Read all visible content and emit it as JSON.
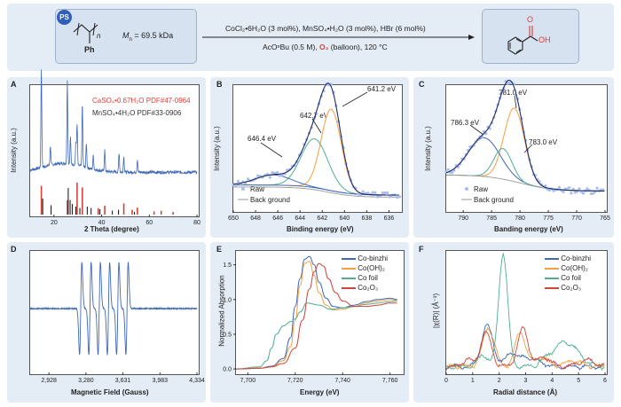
{
  "scheme": {
    "ps_badge": "PS",
    "mn_label": "M",
    "mn_sub": "n",
    "mn_value": "= 69.5 kDa",
    "repeat_n": "n",
    "ph_label": "Ph",
    "conditions_top": "CoCl₂•6H₂O (3 mol%), MnSO₄•H₂O (3 mol%), HBr (6 mol%)",
    "conditions_bottom_a": "AcOⁿBu (0.5 M), ",
    "conditions_o2": "O₂",
    "conditions_bottom_b": " (balloon), 120 °C",
    "product_o": "O",
    "product_oh": "OH"
  },
  "colors": {
    "panel_bg": "#e4ecf6",
    "blue": "#3f68b8",
    "orange": "#f5a040",
    "green": "#4fae91",
    "red": "#d0453a",
    "raw": "#a9bfea",
    "gray": "#9a9a9a"
  },
  "panels": {
    "A": {
      "letter": "A",
      "legend_red": "CaSO₄•0.67H₂O PDF#47-0964",
      "legend_black": "MnSO₄•4H₂O PDF#33-0906"
    },
    "B": {
      "letter": "B",
      "legend_raw": "Raw",
      "legend_bg": "Back ground"
    },
    "C": {
      "letter": "C",
      "legend_raw": "Raw",
      "legend_bg": "Back ground"
    },
    "D": {
      "letter": "D"
    },
    "E": {
      "letter": "E"
    },
    "F": {
      "letter": "F"
    }
  },
  "chart_data": [
    {
      "id": "A",
      "type": "line",
      "xlabel": "2 Theta (degree)",
      "ylabel": "Intensity (a.u.)",
      "xlim": [
        10,
        80
      ],
      "xticks": [
        20,
        40,
        60,
        80
      ],
      "pattern_peaks": [
        [
          14.7,
          110
        ],
        [
          25.6,
          95
        ],
        [
          29.7,
          45
        ],
        [
          31.9,
          70
        ],
        [
          29.2,
          25
        ],
        [
          18.5,
          22
        ],
        [
          26.9,
          30
        ],
        [
          33.6,
          28
        ],
        [
          41.3,
          24
        ],
        [
          47.3,
          22
        ],
        [
          49.3,
          18
        ],
        [
          55.0,
          14
        ],
        [
          36.5,
          16
        ]
      ],
      "ref_red": [
        [
          14.7,
          0.9
        ],
        [
          25.6,
          0.45
        ],
        [
          29.7,
          1.0
        ],
        [
          31.9,
          0.85
        ],
        [
          38.6,
          0.2
        ],
        [
          41.3,
          0.28
        ],
        [
          49.3,
          0.35
        ],
        [
          52.8,
          0.15
        ],
        [
          55.0,
          0.22
        ],
        [
          62.0,
          0.1
        ],
        [
          65.0,
          0.12
        ],
        [
          70.0,
          0.08
        ]
      ],
      "ref_black": [
        [
          14.9,
          0.6
        ],
        [
          18.4,
          0.35
        ],
        [
          25.6,
          1.0
        ],
        [
          26.4,
          0.55
        ],
        [
          27.3,
          0.4
        ],
        [
          28.8,
          0.3
        ],
        [
          30.5,
          0.25
        ],
        [
          33.6,
          0.3
        ],
        [
          35.2,
          0.25
        ],
        [
          38.9,
          0.2
        ],
        [
          44.1,
          0.15
        ],
        [
          46.7,
          0.18
        ],
        [
          53.4,
          0.1
        ]
      ]
    },
    {
      "id": "B",
      "type": "line",
      "xlabel": "Binding energy (eV)",
      "ylabel": "Intensity (a.u.)",
      "xlim": [
        650,
        635
      ],
      "xticks": [
        650,
        648,
        646,
        644,
        642,
        640,
        638,
        636
      ],
      "peaks": [
        {
          "label": "641.2 eV",
          "center": 641.2,
          "height": 0.8,
          "width": 0.9
        },
        {
          "label": "642.7 eV",
          "center": 642.7,
          "height": 0.48,
          "width": 1.2
        },
        {
          "label": "646.4 eV",
          "center": 646.4,
          "height": 0.1,
          "width": 1.6
        }
      ],
      "series": [
        {
          "name": "Raw"
        },
        {
          "name": "Back ground"
        }
      ]
    },
    {
      "id": "C",
      "type": "line",
      "xlabel": "Banding energy (eV)",
      "ylabel": "Intensity (a.u.)",
      "xlim": [
        793,
        765
      ],
      "xticks": [
        790,
        785,
        780,
        775,
        770,
        765
      ],
      "peaks": [
        {
          "label": "781.0 eV",
          "center": 781.0,
          "height": 0.72,
          "width": 1.8
        },
        {
          "label": "786.3 eV",
          "center": 786.3,
          "height": 0.38,
          "width": 2.8
        },
        {
          "label": "783.0 eV",
          "center": 783.0,
          "height": 0.3,
          "width": 1.6
        }
      ],
      "series": [
        {
          "name": "Raw"
        },
        {
          "name": "Back ground"
        }
      ]
    },
    {
      "id": "D",
      "type": "line",
      "xlabel": "Magnetic Field (Gauss)",
      "ylabel": "",
      "xlim": [
        2750,
        4334
      ],
      "xticks": [
        2928,
        3280,
        3631,
        3983,
        4334
      ],
      "xtick_labels": [
        "2,928",
        "3,280",
        "3,631",
        "3,983",
        "4,334"
      ],
      "hyperfine_lines": 6,
      "center": 3450,
      "spacing": 88
    },
    {
      "id": "E",
      "type": "line",
      "xlabel": "Energy (eV)",
      "ylabel": "Normalized Absorption",
      "xlim": [
        7695,
        7765
      ],
      "ylim": [
        -0.05,
        1.7
      ],
      "xticks": [
        7700,
        7720,
        7740,
        7760
      ],
      "xtick_labels": [
        "7,700",
        "7,720",
        "7,740",
        "7,760"
      ],
      "yticks": [
        0.0,
        0.5,
        1.0,
        1.5
      ],
      "ytick_labels": [
        "0.0",
        "0.5",
        "1.0",
        "1.5"
      ],
      "series": [
        {
          "name": "Co-binzhi",
          "x": [
            7695,
            7705,
            7710,
            7715,
            7718,
            7720,
            7722,
            7724,
            7726,
            7728,
            7730,
            7733,
            7736,
            7740,
            7745,
            7750,
            7755,
            7760,
            7763
          ],
          "y": [
            0.0,
            0.01,
            0.04,
            0.15,
            0.45,
            0.9,
            1.3,
            1.58,
            1.62,
            1.5,
            1.25,
            1.02,
            0.9,
            0.88,
            0.92,
            0.97,
            1.0,
            1.02,
            1.0
          ]
        },
        {
          "name": "Co(OH)₂",
          "x": [
            7695,
            7705,
            7710,
            7715,
            7718,
            7720,
            7722,
            7724,
            7726,
            7728,
            7730,
            7733,
            7736,
            7740,
            7745,
            7750,
            7755,
            7760,
            7763
          ],
          "y": [
            0.0,
            0.01,
            0.03,
            0.12,
            0.32,
            0.7,
            1.2,
            1.52,
            1.55,
            1.35,
            1.1,
            0.92,
            0.85,
            0.86,
            0.9,
            0.95,
            0.98,
            1.0,
            0.99
          ]
        },
        {
          "name": "Co foil",
          "x": [
            7695,
            7705,
            7708,
            7710,
            7712,
            7715,
            7718,
            7720,
            7722,
            7725,
            7730,
            7735,
            7740,
            7745,
            7750,
            7755,
            7760,
            7763
          ],
          "y": [
            0.0,
            0.03,
            0.12,
            0.3,
            0.5,
            0.62,
            0.68,
            0.72,
            0.82,
            0.95,
            0.92,
            0.86,
            0.88,
            0.9,
            0.93,
            0.95,
            0.97,
            0.98
          ]
        },
        {
          "name": "Co₂O₃",
          "x": [
            7695,
            7705,
            7710,
            7715,
            7720,
            7723,
            7726,
            7728,
            7730,
            7732,
            7734,
            7737,
            7740,
            7745,
            7750,
            7755,
            7760,
            7763
          ],
          "y": [
            0.0,
            0.01,
            0.03,
            0.08,
            0.3,
            0.7,
            1.15,
            1.4,
            1.52,
            1.48,
            1.3,
            1.1,
            0.98,
            0.9,
            0.9,
            0.92,
            0.95,
            0.95
          ]
        }
      ]
    },
    {
      "id": "F",
      "type": "line",
      "xlabel": "Radial distance (Å)",
      "ylabel": "|χ(R)| (Å⁻³)",
      "xlim": [
        0,
        6
      ],
      "xticks": [
        0,
        1,
        2,
        3,
        4,
        5,
        6
      ],
      "series": [
        {
          "name": "Co-binzhi"
        },
        {
          "name": "Co(OH)₂"
        },
        {
          "name": "Co foil"
        },
        {
          "name": "Co₂O₃"
        }
      ]
    }
  ]
}
